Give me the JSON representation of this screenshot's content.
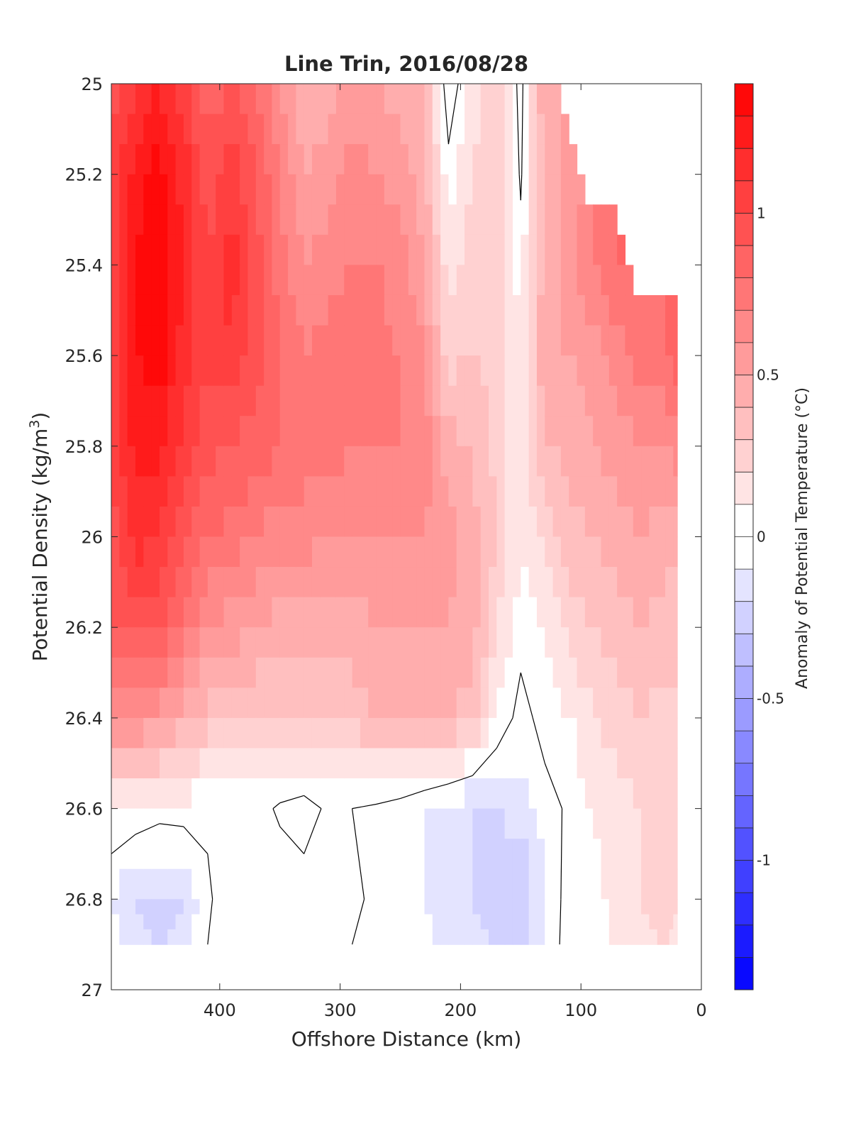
{
  "chart_data": {
    "type": "heatmap",
    "title": "Line Trin, 2016/08/28",
    "xlabel": "Offshore Distance (km)",
    "ylabel_main": "Potential Density (kg/m",
    "ylabel_sup": "3",
    "ylabel_close": ")",
    "xlim": [
      490,
      0
    ],
    "ylim": [
      25,
      27
    ],
    "x_ticks": [
      400,
      300,
      200,
      100,
      0
    ],
    "x_tick_labels": [
      "400",
      "300",
      "200",
      "100",
      "0"
    ],
    "y_ticks": [
      25,
      25.2,
      25.4,
      25.6,
      25.8,
      26,
      26.2,
      26.4,
      26.6,
      26.8,
      27
    ],
    "y_tick_labels": [
      "25",
      "25.2",
      "25.4",
      "25.6",
      "25.8",
      "26",
      "26.2",
      "26.4",
      "26.6",
      "26.8",
      "27"
    ],
    "colorbar": {
      "label": "Anomaly of Potential Temperature (°C)",
      "range": [
        -1.4,
        1.4
      ],
      "step": 0.1,
      "ticks": [
        1,
        0.5,
        0,
        -0.5,
        -1
      ],
      "tick_labels": [
        "1",
        "0.5",
        "0",
        "-0.5",
        "-1"
      ],
      "positive_color": "#ff0000",
      "negative_color": "#0000ff",
      "zero_color": "#ffffff"
    },
    "x": [
      490,
      470,
      450,
      430,
      410,
      390,
      370,
      350,
      330,
      310,
      290,
      270,
      250,
      230,
      210,
      190,
      170,
      150,
      130,
      110,
      90,
      70,
      50,
      30,
      20
    ],
    "y": [
      25.0,
      25.2,
      25.4,
      25.6,
      25.8,
      26.0,
      26.2,
      26.4,
      26.6,
      26.8,
      26.9
    ],
    "z": [
      [
        0.95,
        1.1,
        1.2,
        1.05,
        0.85,
        0.9,
        0.8,
        0.6,
        0.4,
        0.45,
        0.55,
        0.5,
        0.45,
        0.4,
        -0.1,
        0.15,
        0.25,
        -0.05,
        0.5,
        null,
        null,
        null,
        null,
        null,
        null
      ],
      [
        1.0,
        1.25,
        1.35,
        1.15,
        0.95,
        1.05,
        0.9,
        0.7,
        0.5,
        0.55,
        0.65,
        0.6,
        0.55,
        0.45,
        0.05,
        0.2,
        0.3,
        -0.02,
        0.45,
        0.55,
        null,
        null,
        null,
        null,
        null
      ],
      [
        1.05,
        1.3,
        1.4,
        1.2,
        1.0,
        1.15,
        0.95,
        0.75,
        0.6,
        0.65,
        0.7,
        0.7,
        0.65,
        0.5,
        0.15,
        0.25,
        0.3,
        0.05,
        0.45,
        0.55,
        0.7,
        0.8,
        null,
        null,
        null
      ],
      [
        1.05,
        1.3,
        1.35,
        1.15,
        1.0,
        1.1,
        0.95,
        0.8,
        0.7,
        0.75,
        0.75,
        0.75,
        0.7,
        0.6,
        0.25,
        0.3,
        0.25,
        0.1,
        0.5,
        0.5,
        0.55,
        0.65,
        0.75,
        0.8,
        0.85
      ],
      [
        1.0,
        1.25,
        1.25,
        1.05,
        0.95,
        0.9,
        0.85,
        0.8,
        0.75,
        0.75,
        0.7,
        0.7,
        0.7,
        0.65,
        0.45,
        0.4,
        0.25,
        0.12,
        0.4,
        0.45,
        0.5,
        0.55,
        0.6,
        0.6,
        0.65
      ],
      [
        0.95,
        1.15,
        1.1,
        0.95,
        0.8,
        0.75,
        0.7,
        0.65,
        0.65,
        0.6,
        0.6,
        0.6,
        0.6,
        0.6,
        0.55,
        0.45,
        0.3,
        0.1,
        0.2,
        0.35,
        0.4,
        0.45,
        0.5,
        0.45,
        0.45
      ],
      [
        0.9,
        0.95,
        0.9,
        0.75,
        0.6,
        0.55,
        0.5,
        0.45,
        0.45,
        0.45,
        0.45,
        0.5,
        0.5,
        0.5,
        0.5,
        0.45,
        0.2,
        0.05,
        0.1,
        0.25,
        0.3,
        0.35,
        0.4,
        0.35,
        0.35
      ],
      [
        0.65,
        0.6,
        0.55,
        0.45,
        0.35,
        0.3,
        0.3,
        0.3,
        0.3,
        0.35,
        0.35,
        0.4,
        0.4,
        0.4,
        0.4,
        0.35,
        0.1,
        -0.05,
        0.05,
        0.08,
        0.2,
        0.25,
        0.3,
        0.25,
        0.25
      ],
      [
        0.1,
        0.08,
        0.05,
        0.05,
        0.02,
        0.05,
        0.05,
        -0.02,
        -0.05,
        0.02,
        0.0,
        -0.02,
        -0.05,
        -0.1,
        -0.15,
        -0.2,
        -0.2,
        -0.15,
        -0.05,
        0.02,
        0.1,
        0.15,
        0.2,
        0.2,
        0.2
      ],
      [
        -0.1,
        -0.2,
        -0.25,
        -0.2,
        -0.02,
        0.08,
        0.1,
        0.08,
        0.05,
        0.03,
        0.02,
        -0.02,
        -0.05,
        -0.1,
        -0.15,
        -0.2,
        -0.25,
        -0.3,
        -0.1,
        0.05,
        0.05,
        0.15,
        0.2,
        0.25,
        0.2
      ],
      [
        -0.05,
        -0.15,
        -0.2,
        -0.15,
        0.0,
        0.06,
        0.08,
        0.06,
        0.04,
        0.02,
        0.0,
        -0.02,
        -0.05,
        -0.08,
        -0.12,
        -0.15,
        -0.2,
        -0.25,
        -0.08,
        0.05,
        0.02,
        0.12,
        0.18,
        0.2,
        0.18
      ]
    ]
  }
}
